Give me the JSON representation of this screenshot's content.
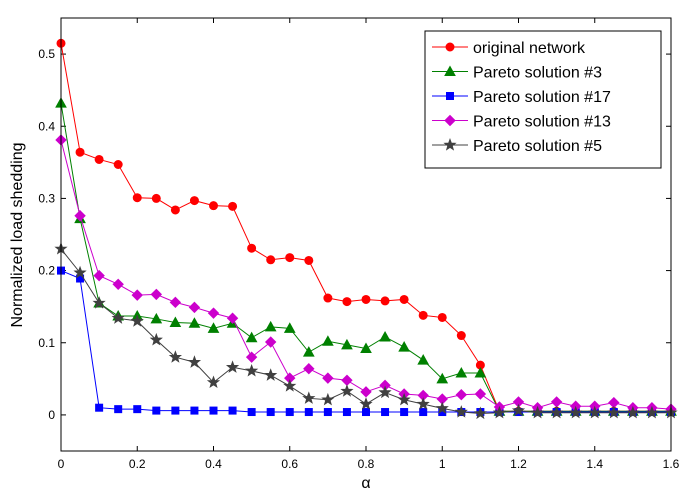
{
  "chart_data": {
    "type": "line",
    "title": "",
    "xlabel": "α",
    "ylabel": "Normalized load shedding",
    "xlim": [
      0,
      1.6
    ],
    "ylim": [
      -0.05,
      0.55
    ],
    "xticks": [
      0,
      0.2,
      0.4,
      0.6,
      0.8,
      1,
      1.2,
      1.4,
      1.6
    ],
    "xtick_labels": [
      "0",
      "0.2",
      "0.4",
      "0.6",
      "0.8",
      "1",
      "1.2",
      "1.4",
      "1.6"
    ],
    "yticks": [
      0,
      0.1,
      0.2,
      0.3,
      0.4,
      0.5
    ],
    "ytick_labels": [
      "0",
      "0.1",
      "0.2",
      "0.3",
      "0.4",
      "0.5"
    ],
    "grid": false,
    "legend_position": "top-right",
    "x": [
      0,
      0.05,
      0.1,
      0.15,
      0.2,
      0.25,
      0.3,
      0.35,
      0.4,
      0.45,
      0.5,
      0.55,
      0.6,
      0.65,
      0.7,
      0.75,
      0.8,
      0.85,
      0.9,
      0.95,
      1.0,
      1.05,
      1.1,
      1.15,
      1.2,
      1.25,
      1.3,
      1.35,
      1.4,
      1.45,
      1.5,
      1.55,
      1.6
    ],
    "series": [
      {
        "name": "original network",
        "color": "#ff0000",
        "marker": "circle",
        "values": [
          0.515,
          0.364,
          0.354,
          0.347,
          0.301,
          0.3,
          0.284,
          0.297,
          0.29,
          0.289,
          0.231,
          0.215,
          0.218,
          0.214,
          0.162,
          0.157,
          0.16,
          0.158,
          0.16,
          0.138,
          0.135,
          0.11,
          0.069,
          0.005,
          0.005,
          0.005,
          0.005,
          0.005,
          0.005,
          0.005,
          0.005,
          0.005,
          0.005
        ]
      },
      {
        "name": "Pareto solution #3",
        "color": "#008000",
        "marker": "triangle",
        "values": [
          0.432,
          0.272,
          0.155,
          0.137,
          0.137,
          0.133,
          0.128,
          0.127,
          0.12,
          0.127,
          0.107,
          0.122,
          0.12,
          0.087,
          0.102,
          0.097,
          0.092,
          0.108,
          0.094,
          0.076,
          0.05,
          0.058,
          0.058,
          0.005,
          0.005,
          0.005,
          0.005,
          0.005,
          0.005,
          0.005,
          0.005,
          0.005,
          0.005
        ]
      },
      {
        "name": "Pareto solution #17",
        "color": "#0000ff",
        "marker": "square",
        "values": [
          0.2,
          0.189,
          0.01,
          0.008,
          0.008,
          0.006,
          0.006,
          0.006,
          0.006,
          0.006,
          0.004,
          0.004,
          0.004,
          0.004,
          0.004,
          0.004,
          0.004,
          0.004,
          0.004,
          0.004,
          0.004,
          0.004,
          0.004,
          0.004,
          0.004,
          0.004,
          0.004,
          0.004,
          0.004,
          0.004,
          0.004,
          0.004,
          0.004
        ]
      },
      {
        "name": "Pareto solution #13",
        "color": "#cc00cc",
        "marker": "diamond",
        "values": [
          0.381,
          0.276,
          0.193,
          0.181,
          0.166,
          0.167,
          0.156,
          0.149,
          0.141,
          0.134,
          0.08,
          0.101,
          0.051,
          0.064,
          0.051,
          0.048,
          0.032,
          0.041,
          0.029,
          0.027,
          0.022,
          0.028,
          0.029,
          0.011,
          0.018,
          0.01,
          0.018,
          0.012,
          0.012,
          0.017,
          0.01,
          0.01,
          0.008
        ]
      },
      {
        "name": "Pareto solution #5",
        "color": "#404040",
        "marker": "star",
        "values": [
          0.23,
          0.197,
          0.155,
          0.134,
          0.13,
          0.104,
          0.08,
          0.073,
          0.045,
          0.066,
          0.061,
          0.055,
          0.04,
          0.023,
          0.021,
          0.033,
          0.015,
          0.031,
          0.021,
          0.015,
          0.009,
          0.004,
          0.002,
          0.003,
          0.006,
          0.003,
          0.003,
          0.003,
          0.003,
          0.003,
          0.003,
          0.003,
          0.003
        ]
      }
    ]
  }
}
